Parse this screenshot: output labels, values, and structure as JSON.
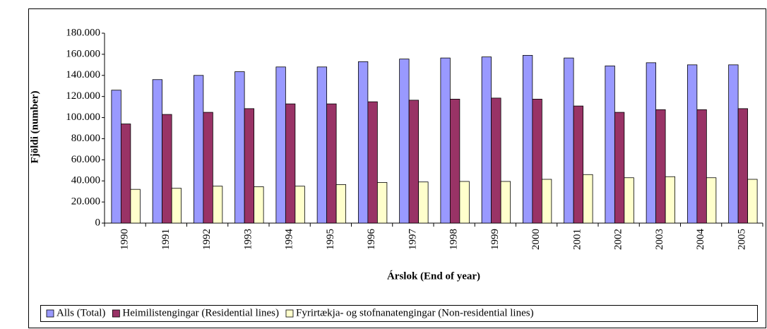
{
  "chart_data": {
    "type": "bar",
    "xlabel": "Árslok (End of year)",
    "ylabel": "Fjöldi (number)",
    "categories": [
      "1990",
      "1991",
      "1992",
      "1993",
      "1994",
      "1995",
      "1996",
      "1997",
      "1998",
      "1999",
      "2000",
      "2001",
      "2002",
      "2003",
      "2004",
      "2005"
    ],
    "series": [
      {
        "name": "Alls (Total)",
        "color": "#9999ff",
        "values": [
          126000,
          136000,
          140000,
          143500,
          148000,
          148000,
          153000,
          155500,
          156500,
          157500,
          159000,
          156500,
          149000,
          152000,
          150000,
          150000
        ]
      },
      {
        "name": "Heimilistengingar (Residential lines)",
        "color": "#993366",
        "values": [
          94000,
          103000,
          105000,
          108500,
          113000,
          113000,
          115000,
          116500,
          117500,
          118500,
          117500,
          111000,
          105000,
          107500,
          107500,
          108500
        ]
      },
      {
        "name": "Fyrirtækja- og stofnanatengingar (Non-residential lines)",
        "color": "#ffffcc",
        "values": [
          32000,
          33000,
          35000,
          34500,
          35000,
          36500,
          38500,
          39000,
          39500,
          39500,
          41500,
          46000,
          43000,
          44000,
          43000,
          41500
        ]
      }
    ],
    "ylim": [
      0,
      180000
    ],
    "yticks": [
      0,
      {
        "value": 20000,
        "label": "20.000"
      },
      {
        "value": 40000,
        "label": "40.000"
      },
      {
        "value": 60000,
        "label": "60.000"
      },
      {
        "value": 80000,
        "label": "80.000"
      },
      {
        "value": 100000,
        "label": "100.000"
      },
      {
        "value": 120000,
        "label": "120.000"
      },
      {
        "value": 140000,
        "label": "140.000"
      },
      {
        "value": 160000,
        "label": "160.000"
      },
      {
        "value": 180000,
        "label": "180.000"
      }
    ],
    "grid": false,
    "legend": "bottom"
  }
}
